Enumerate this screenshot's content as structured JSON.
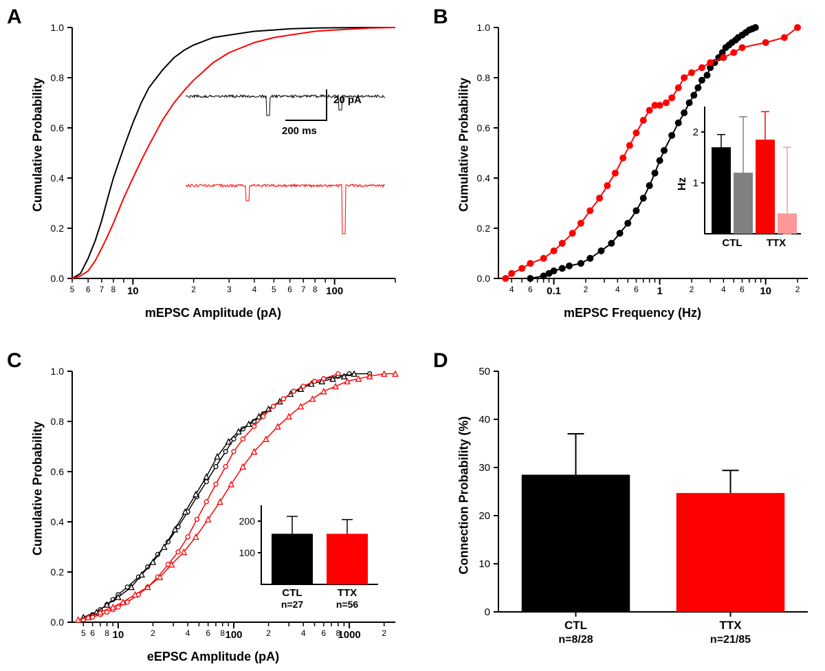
{
  "panel_A": {
    "label": "A",
    "type": "line",
    "xlabel": "mEPSC Amplitude (pA)",
    "ylabel": "Cumulative Probability",
    "xlim": [
      5,
      200
    ],
    "ylim": [
      0,
      1.0
    ],
    "yticks": [
      0.0,
      0.2,
      0.4,
      0.6,
      0.8,
      1.0
    ],
    "xticks_major": [
      10,
      100
    ],
    "xticks_minor_labels": [
      "5",
      "6",
      "7",
      "8",
      "2",
      "3",
      "4",
      "5",
      "6",
      "7",
      "8"
    ],
    "xscale": "log",
    "line_width": 2,
    "series": [
      {
        "name": "CTL",
        "color": "#000000",
        "x": [
          5,
          5.5,
          6,
          6.5,
          7,
          7.5,
          8,
          9,
          10,
          11,
          12,
          14,
          16,
          18,
          20,
          25,
          30,
          40,
          50,
          60,
          80,
          100,
          150,
          200
        ],
        "y": [
          0,
          0.02,
          0.08,
          0.15,
          0.23,
          0.32,
          0.4,
          0.52,
          0.62,
          0.7,
          0.76,
          0.83,
          0.88,
          0.91,
          0.93,
          0.96,
          0.97,
          0.985,
          0.99,
          0.995,
          0.998,
          0.999,
          1.0,
          1.0
        ]
      },
      {
        "name": "TTX",
        "color": "#ff0000",
        "x": [
          5,
          5.5,
          6,
          6.5,
          7,
          7.5,
          8,
          9,
          10,
          11,
          12,
          14,
          16,
          18,
          20,
          25,
          30,
          40,
          50,
          60,
          80,
          100,
          150,
          200
        ],
        "y": [
          0,
          0.01,
          0.03,
          0.07,
          0.12,
          0.17,
          0.22,
          0.32,
          0.4,
          0.47,
          0.53,
          0.63,
          0.7,
          0.75,
          0.79,
          0.86,
          0.9,
          0.94,
          0.96,
          0.97,
          0.985,
          0.99,
          0.998,
          1.0
        ]
      }
    ],
    "inset_traces": {
      "scale_x_label": "200 ms",
      "scale_y_label": "20 pA",
      "black_trace_color": "#000000",
      "red_trace_color": "#ff0000"
    },
    "background_color": "#ffffff",
    "axis_line_width": 2,
    "font_size_labels": 18,
    "font_size_ticks": 14
  },
  "panel_B": {
    "label": "B",
    "type": "line",
    "xlabel": "mEPSC Frequency (Hz)",
    "ylabel": "Cumulative Probability",
    "xlim": [
      0.03,
      25
    ],
    "ylim": [
      0,
      1.0
    ],
    "yticks": [
      0.0,
      0.2,
      0.4,
      0.6,
      0.8,
      1.0
    ],
    "xticks_major": [
      0.1,
      1,
      10
    ],
    "xscale": "log",
    "line_width": 2,
    "marker_size": 5,
    "series": [
      {
        "name": "CTL",
        "color": "#000000",
        "x": [
          0.06,
          0.08,
          0.09,
          0.1,
          0.12,
          0.14,
          0.18,
          0.22,
          0.28,
          0.35,
          0.42,
          0.5,
          0.6,
          0.7,
          0.8,
          0.9,
          1.0,
          1.1,
          1.3,
          1.5,
          1.7,
          1.9,
          2.1,
          2.3,
          2.5,
          2.8,
          3.0,
          3.3,
          3.6,
          3.9,
          4.2,
          4.5,
          4.8,
          5.2,
          5.5,
          6.0,
          6.5,
          7.0,
          7.5,
          8.0
        ],
        "y": [
          0,
          0.01,
          0.02,
          0.03,
          0.04,
          0.05,
          0.06,
          0.08,
          0.11,
          0.14,
          0.18,
          0.22,
          0.27,
          0.32,
          0.37,
          0.42,
          0.47,
          0.51,
          0.57,
          0.62,
          0.66,
          0.7,
          0.73,
          0.76,
          0.79,
          0.81,
          0.84,
          0.86,
          0.88,
          0.9,
          0.92,
          0.93,
          0.94,
          0.95,
          0.96,
          0.97,
          0.98,
          0.99,
          0.995,
          1.0
        ]
      },
      {
        "name": "TTX",
        "color": "#ff0000",
        "x": [
          0.035,
          0.04,
          0.05,
          0.06,
          0.08,
          0.1,
          0.12,
          0.15,
          0.18,
          0.22,
          0.27,
          0.32,
          0.38,
          0.45,
          0.52,
          0.6,
          0.7,
          0.8,
          0.9,
          1.0,
          1.15,
          1.3,
          1.5,
          1.7,
          2.0,
          2.5,
          3.0,
          4.0,
          5.0,
          6.0,
          10,
          15,
          20
        ],
        "y": [
          0,
          0.02,
          0.04,
          0.06,
          0.08,
          0.11,
          0.14,
          0.18,
          0.22,
          0.27,
          0.32,
          0.37,
          0.42,
          0.48,
          0.53,
          0.58,
          0.63,
          0.67,
          0.69,
          0.69,
          0.7,
          0.72,
          0.76,
          0.8,
          0.82,
          0.84,
          0.86,
          0.88,
          0.9,
          0.92,
          0.94,
          0.96,
          1.0
        ]
      }
    ],
    "inset_bars": {
      "ylabel": "Hz",
      "yticks": [
        1,
        2
      ],
      "x_labels": [
        "CTL",
        "TTX"
      ],
      "bars": [
        {
          "color": "#000000",
          "value": 1.7,
          "err": 0.25
        },
        {
          "color": "#808080",
          "value": 1.2,
          "err": 1.1
        },
        {
          "color": "#ff0000",
          "value": 1.85,
          "err": 0.55
        },
        {
          "color": "#ff9999",
          "value": 0.4,
          "err": 1.3
        }
      ],
      "font_size": 14
    },
    "background_color": "#ffffff",
    "axis_line_width": 2
  },
  "panel_C": {
    "label": "C",
    "type": "line",
    "xlabel": "eEPSC Amplitude (pA)",
    "ylabel": "Cumulative Probability",
    "xlim": [
      4,
      2500
    ],
    "ylim": [
      0,
      1.0
    ],
    "yticks": [
      0.0,
      0.2,
      0.4,
      0.6,
      0.8,
      1.0
    ],
    "xticks_major": [
      10,
      100,
      1000
    ],
    "xscale": "log",
    "line_width": 1.5,
    "marker_size": 6,
    "series": [
      {
        "name": "CTL-circle",
        "color": "#000000",
        "marker": "circle",
        "x": [
          5,
          6,
          7,
          8,
          9,
          10,
          12,
          15,
          18,
          22,
          27,
          33,
          40,
          48,
          58,
          70,
          85,
          100,
          120,
          150,
          180,
          220,
          270,
          330,
          400,
          500,
          600,
          800,
          1000,
          1500
        ],
        "y": [
          0.01,
          0.03,
          0.05,
          0.07,
          0.09,
          0.11,
          0.14,
          0.18,
          0.22,
          0.27,
          0.32,
          0.38,
          0.44,
          0.5,
          0.56,
          0.62,
          0.68,
          0.73,
          0.77,
          0.8,
          0.83,
          0.86,
          0.89,
          0.92,
          0.94,
          0.96,
          0.97,
          0.98,
          0.99,
          0.99
        ]
      },
      {
        "name": "CTL-triangle",
        "color": "#000000",
        "marker": "triangle",
        "x": [
          5,
          6.5,
          8,
          10,
          13,
          16,
          20,
          25,
          31,
          38,
          47,
          58,
          72,
          90,
          110,
          135,
          165,
          200,
          250,
          310,
          380,
          470,
          580,
          720,
          900,
          1100
        ],
        "y": [
          0.02,
          0.04,
          0.07,
          0.1,
          0.14,
          0.19,
          0.24,
          0.3,
          0.37,
          0.44,
          0.51,
          0.58,
          0.66,
          0.72,
          0.76,
          0.79,
          0.82,
          0.85,
          0.88,
          0.91,
          0.93,
          0.95,
          0.96,
          0.97,
          0.98,
          0.99
        ]
      },
      {
        "name": "TTX-circle",
        "color": "#ff0000",
        "marker": "circle",
        "x": [
          5,
          6,
          7,
          8,
          9,
          10,
          12,
          15,
          18,
          22,
          27,
          33,
          40,
          48,
          58,
          70,
          85,
          100,
          120,
          150,
          180,
          220,
          270,
          330,
          400,
          500,
          600,
          800
        ],
        "y": [
          0.01,
          0.02,
          0.03,
          0.04,
          0.05,
          0.06,
          0.08,
          0.11,
          0.14,
          0.18,
          0.23,
          0.28,
          0.34,
          0.41,
          0.48,
          0.55,
          0.62,
          0.68,
          0.73,
          0.78,
          0.82,
          0.86,
          0.89,
          0.92,
          0.94,
          0.96,
          0.97,
          0.99
        ]
      },
      {
        "name": "TTX-triangle",
        "color": "#ff0000",
        "marker": "triangle",
        "x": [
          4.5,
          5.5,
          7,
          9,
          11,
          14,
          18,
          23,
          29,
          37,
          47,
          60,
          76,
          95,
          120,
          150,
          190,
          240,
          300,
          380,
          480,
          600,
          760,
          960,
          1200,
          1500,
          2000,
          2500
        ],
        "y": [
          0.01,
          0.02,
          0.04,
          0.06,
          0.08,
          0.11,
          0.14,
          0.18,
          0.23,
          0.28,
          0.34,
          0.41,
          0.48,
          0.55,
          0.62,
          0.68,
          0.73,
          0.78,
          0.82,
          0.86,
          0.89,
          0.92,
          0.94,
          0.96,
          0.97,
          0.98,
          0.99,
          0.99
        ]
      }
    ],
    "inset_bars": {
      "yticks": [
        100,
        200
      ],
      "bars": [
        {
          "label": "CTL",
          "n_label": "n=27",
          "color": "#000000",
          "value": 160,
          "err": 55
        },
        {
          "label": "TTX",
          "n_label": "n=56",
          "color": "#ff0000",
          "value": 160,
          "err": 45
        }
      ],
      "font_size": 14
    },
    "background_color": "#ffffff",
    "axis_line_width": 2
  },
  "panel_D": {
    "label": "D",
    "type": "bar",
    "ylabel": "Connection Probability (%)",
    "ylim": [
      0,
      50
    ],
    "yticks": [
      0,
      10,
      20,
      30,
      40,
      50
    ],
    "bars": [
      {
        "label": "CTL",
        "n_label": "n=8/28",
        "color": "#000000",
        "value": 28.5,
        "err": 8.5
      },
      {
        "label": "TTX",
        "n_label": "n=21/85",
        "color": "#ff0000",
        "value": 24.7,
        "err": 4.7
      }
    ],
    "bar_width": 0.7,
    "background_color": "#ffffff",
    "axis_line_width": 2,
    "font_size_labels": 18,
    "font_size_ticks": 14
  }
}
